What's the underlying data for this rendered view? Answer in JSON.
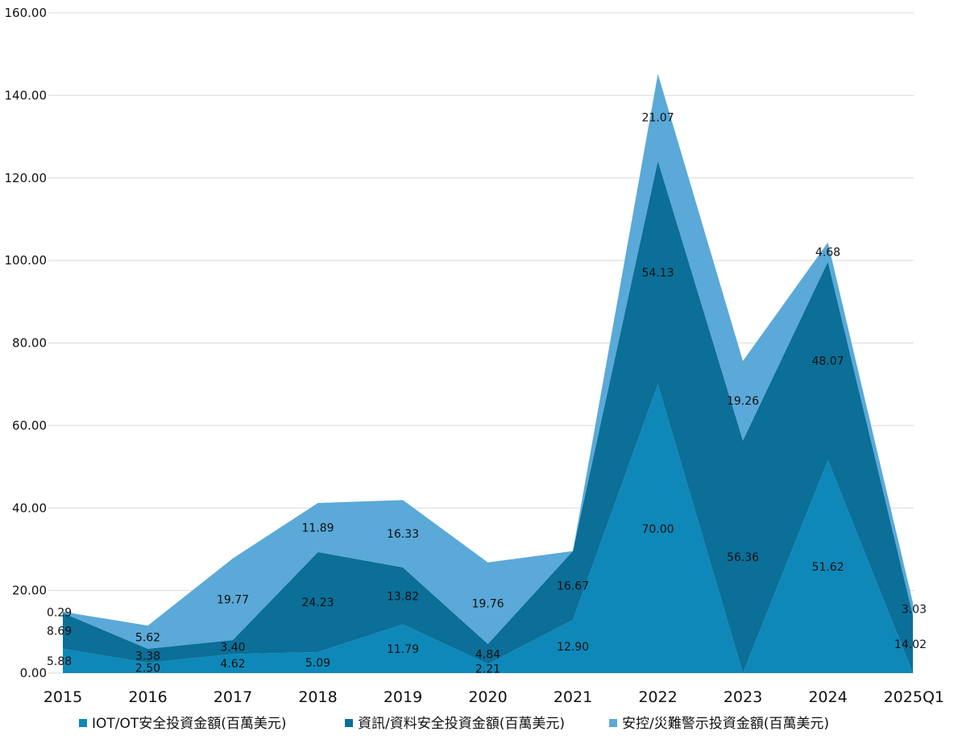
{
  "chart_data": {
    "type": "area",
    "stacked": true,
    "title": "",
    "xlabel": "",
    "ylabel": "",
    "ylim": [
      0,
      160
    ],
    "yticks": [
      "0.00",
      "20.00",
      "40.00",
      "60.00",
      "80.00",
      "100.00",
      "120.00",
      "140.00",
      "160.00"
    ],
    "grid": true,
    "legend_position": "bottom",
    "categories": [
      "2015",
      "2016",
      "2017",
      "2018",
      "2019",
      "2020",
      "2021",
      "2022",
      "2023",
      "2024",
      "2025Q1"
    ],
    "series": [
      {
        "name": "IOT/OT安全投資金額(百萬美元)",
        "color": "#0e88b8",
        "values": [
          5.88,
          2.5,
          4.62,
          5.09,
          11.79,
          2.21,
          12.9,
          70.0,
          0.0,
          51.62,
          0.0
        ],
        "labels": [
          "5.88",
          "2.50",
          "4.62",
          "5.09",
          "11.79",
          "2.21",
          "12.90",
          "70.00",
          "",
          "51.62",
          ""
        ]
      },
      {
        "name": "資訊/資料安全投資金額(百萬美元)",
        "color": "#0b6f98",
        "values": [
          8.69,
          3.38,
          3.4,
          24.23,
          13.82,
          4.84,
          16.67,
          54.13,
          56.36,
          48.07,
          14.02
        ],
        "labels": [
          "8.69",
          "3.38",
          "3.40",
          "24.23",
          "13.82",
          "4.84",
          "16.67",
          "54.13",
          "56.36",
          "48.07",
          "14.02"
        ]
      },
      {
        "name": "安控/災難警示投資金額(百萬美元)",
        "color": "#5aa9d8",
        "values": [
          0.29,
          5.62,
          19.77,
          11.89,
          16.33,
          19.76,
          0.0,
          21.07,
          19.26,
          4.68,
          3.03
        ],
        "labels": [
          "0.29",
          "5.62",
          "19.77",
          "11.89",
          "16.33",
          "19.76",
          "",
          "21.07",
          "19.26",
          "4.68",
          "3.03"
        ]
      }
    ]
  }
}
